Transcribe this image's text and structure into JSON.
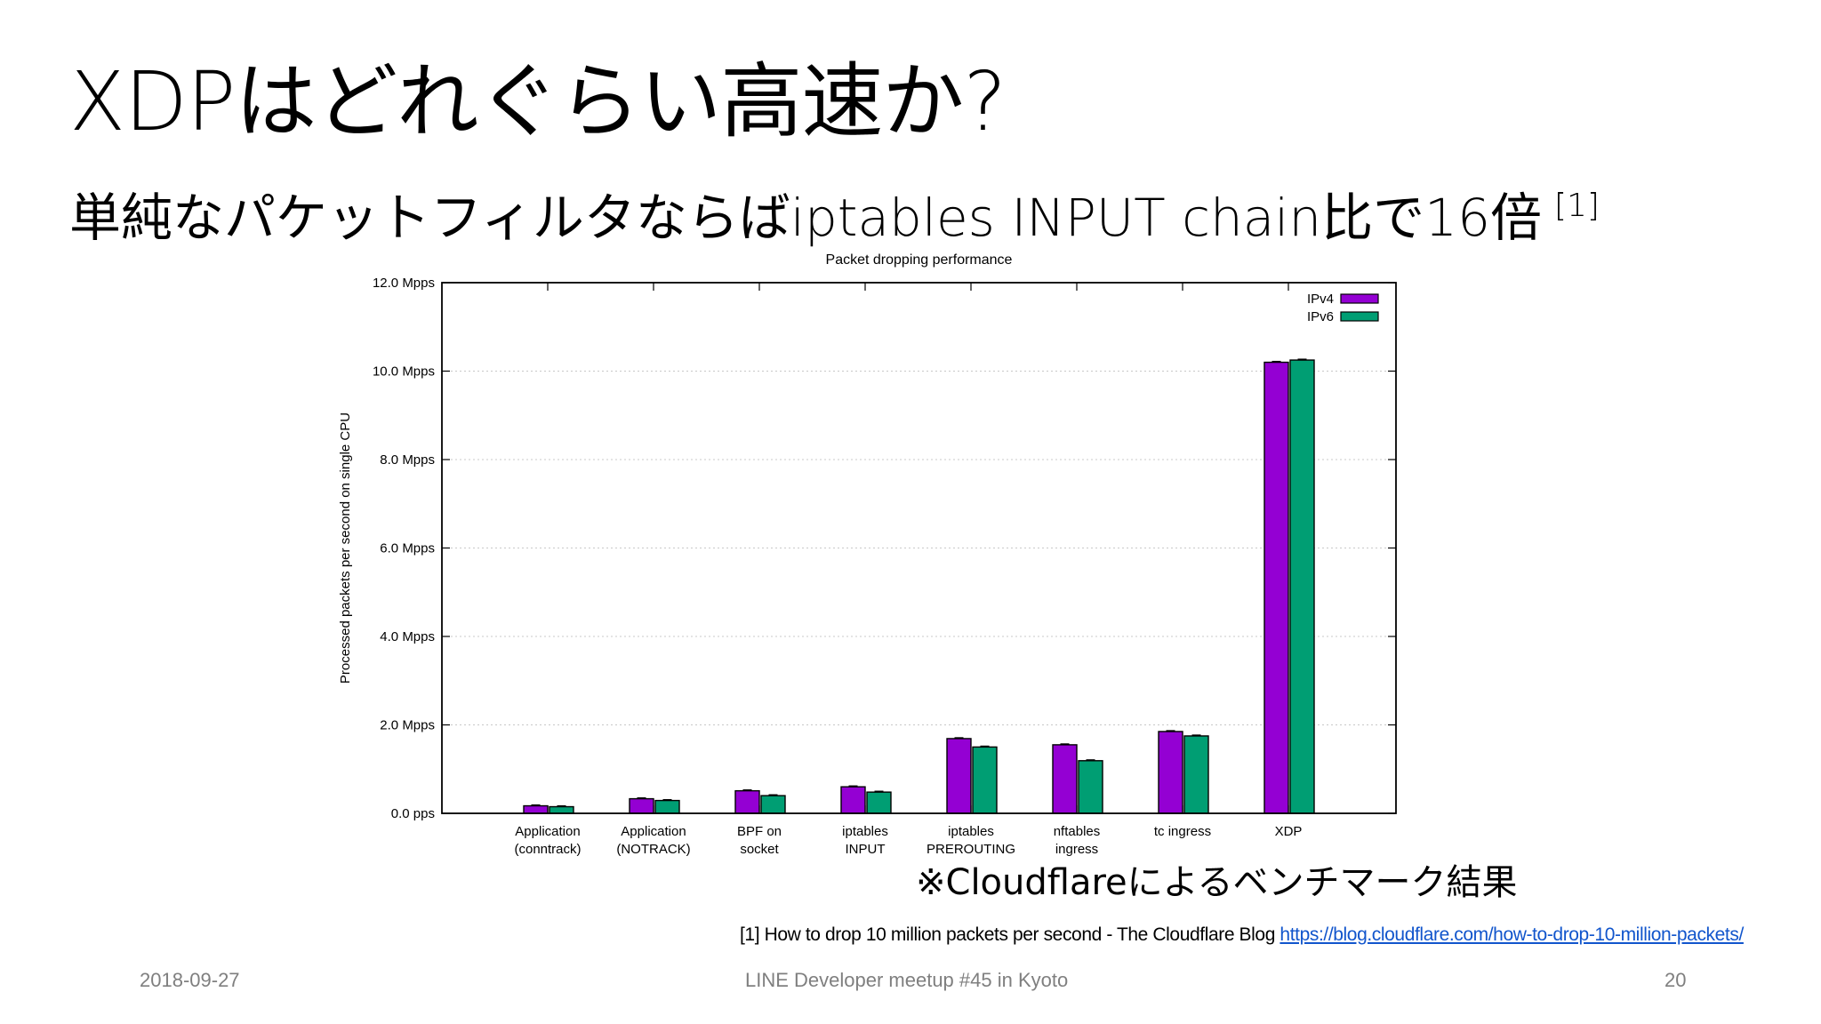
{
  "slide": {
    "title": "XDPはどれぐらい高速か?",
    "subtitle": "単純なパケットフィルタならばiptables INPUT chain比で16倍",
    "subtitle_ref": "[1]",
    "note": "※Cloudflareによるベンチマーク結果",
    "reference_text": "[1] How to drop 10 million packets per second - The Cloudflare Blog ",
    "reference_link": "https://blog.cloudflare.com/how-to-drop-10-million-packets/",
    "footer_date": "2018-09-27",
    "footer_event": "LINE Developer meetup #45 in Kyoto",
    "page_number": "20"
  },
  "chart_data": {
    "type": "bar",
    "title": "Packet dropping performance",
    "xlabel": "",
    "ylabel": "Processed packets per second on single CPU",
    "ylim": [
      0,
      12
    ],
    "yticks": [
      0,
      2,
      4,
      6,
      8,
      10,
      12
    ],
    "ytick_labels": [
      "0.0  pps",
      "2.0 Mpps",
      "4.0 Mpps",
      "6.0 Mpps",
      "8.0 Mpps",
      "10.0 Mpps",
      "12.0 Mpps"
    ],
    "grid": true,
    "legend_position": "top-right",
    "categories": [
      [
        "Application",
        "(conntrack)"
      ],
      [
        "Application",
        "(NOTRACK)"
      ],
      [
        "BPF on",
        "socket"
      ],
      [
        "iptables",
        "INPUT"
      ],
      [
        "iptables",
        "PREROUTING"
      ],
      [
        "nftables",
        "ingress"
      ],
      [
        "tc ingress"
      ],
      [
        "XDP"
      ]
    ],
    "series": [
      {
        "name": "IPv4",
        "color": "#9400d3",
        "values": [
          0.17,
          0.33,
          0.51,
          0.6,
          1.69,
          1.55,
          1.85,
          10.2
        ]
      },
      {
        "name": "IPv6",
        "color": "#009e73",
        "values": [
          0.15,
          0.29,
          0.4,
          0.48,
          1.5,
          1.19,
          1.75,
          10.25
        ]
      }
    ]
  }
}
